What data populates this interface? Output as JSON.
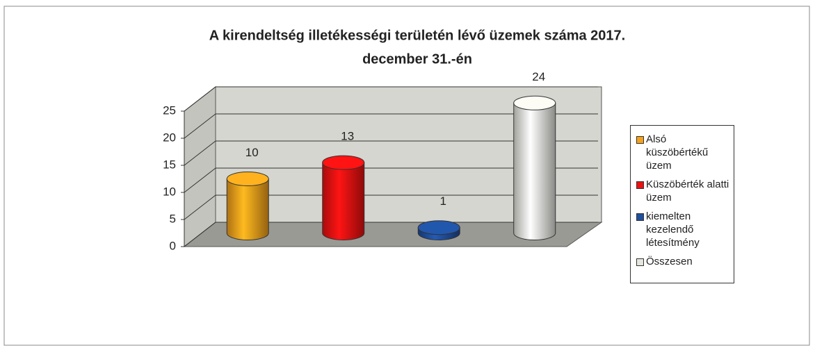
{
  "chart_data": {
    "type": "bar",
    "title": [
      "A kirendeltség illetékességi területén lévő üzemek száma 2017.",
      "december 31.-én"
    ],
    "series": [
      {
        "name": "Alsó küszöbértékű üzem",
        "color": "#f7a21b",
        "values": [
          10
        ]
      },
      {
        "name": "Küszöbérték alatti üzem",
        "color": "#ee1111",
        "values": [
          13
        ]
      },
      {
        "name": "kiemelten kezelendő létesítmény",
        "color": "#1f4f9e",
        "values": [
          1
        ]
      },
      {
        "name": "Összesen",
        "color": "#e6e6df",
        "values": [
          24
        ]
      }
    ],
    "ylim": [
      0,
      25
    ],
    "yticks": [
      0,
      5,
      10,
      15,
      20,
      25
    ],
    "grid": true,
    "legend": "right"
  }
}
